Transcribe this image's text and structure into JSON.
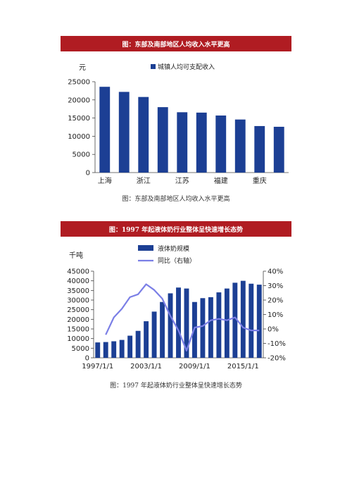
{
  "chart1": {
    "banner": "图：东部及南部地区人均收入水平更高",
    "caption": "图：东部及南部地区人均收入水平更高",
    "colors": {
      "bar": "#1c3f94",
      "axis": "#444444"
    },
    "chart_data": {
      "type": "bar",
      "ylabel": "元",
      "ylim": [
        0,
        25000
      ],
      "yticks": [
        "0",
        "5000",
        "10000",
        "15000",
        "20000",
        "25000"
      ],
      "xtick_labels": [
        "上海",
        "浙江",
        "江苏",
        "福建",
        "重庆"
      ],
      "xtick_positions": [
        0,
        2,
        4,
        6,
        8
      ],
      "series": [
        {
          "name": "城镇人均可支配收入",
          "values": [
            23600,
            22200,
            20800,
            18000,
            16600,
            16500,
            15700,
            14600,
            12800,
            12600
          ]
        }
      ]
    }
  },
  "chart2": {
    "banner": "图：1997 年起液体奶行业整体呈快速增长态势",
    "caption": "图：1997 年起液体奶行业整体呈快速增长态势",
    "colors": {
      "bar": "#1c3f94",
      "line": "#7b7fe6",
      "axis": "#444444"
    },
    "chart_data": {
      "type": "bar",
      "ylabel": "千吨",
      "ylim": [
        0,
        45000
      ],
      "y2lim": [
        -20,
        40
      ],
      "yticks": [
        "0",
        "5000",
        "10000",
        "15000",
        "20000",
        "25000",
        "30000",
        "35000",
        "40000",
        "45000"
      ],
      "y2ticks": [
        "-20%",
        "-10%",
        "0%",
        "10%",
        "20%",
        "30%",
        "40%"
      ],
      "xtick_labels": [
        "1997/1/1",
        "2003/1/1",
        "2009/1/1",
        "2015/1/1"
      ],
      "xtick_positions": [
        0,
        6,
        12,
        18
      ],
      "x": [
        "1997",
        "1998",
        "1999",
        "2000",
        "2001",
        "2002",
        "2003",
        "2004",
        "2005",
        "2006",
        "2007",
        "2008",
        "2009",
        "2010",
        "2011",
        "2012",
        "2013",
        "2014",
        "2015",
        "2016",
        "2017"
      ],
      "series": [
        {
          "name": "液体奶规模",
          "kind": "bar",
          "values": [
            8000,
            8200,
            8600,
            9300,
            11500,
            14000,
            19000,
            24000,
            29000,
            33500,
            36500,
            36000,
            29000,
            31000,
            31500,
            34000,
            36000,
            39000,
            40000,
            38500,
            38000
          ]
        },
        {
          "name": "同比（右轴）",
          "kind": "line",
          "axis": "right",
          "values": [
            null,
            -4,
            8,
            14,
            22,
            24,
            31,
            27,
            21,
            9,
            -1,
            -15,
            1,
            2,
            6,
            7,
            6,
            8,
            1,
            -1,
            -1
          ]
        }
      ]
    }
  }
}
